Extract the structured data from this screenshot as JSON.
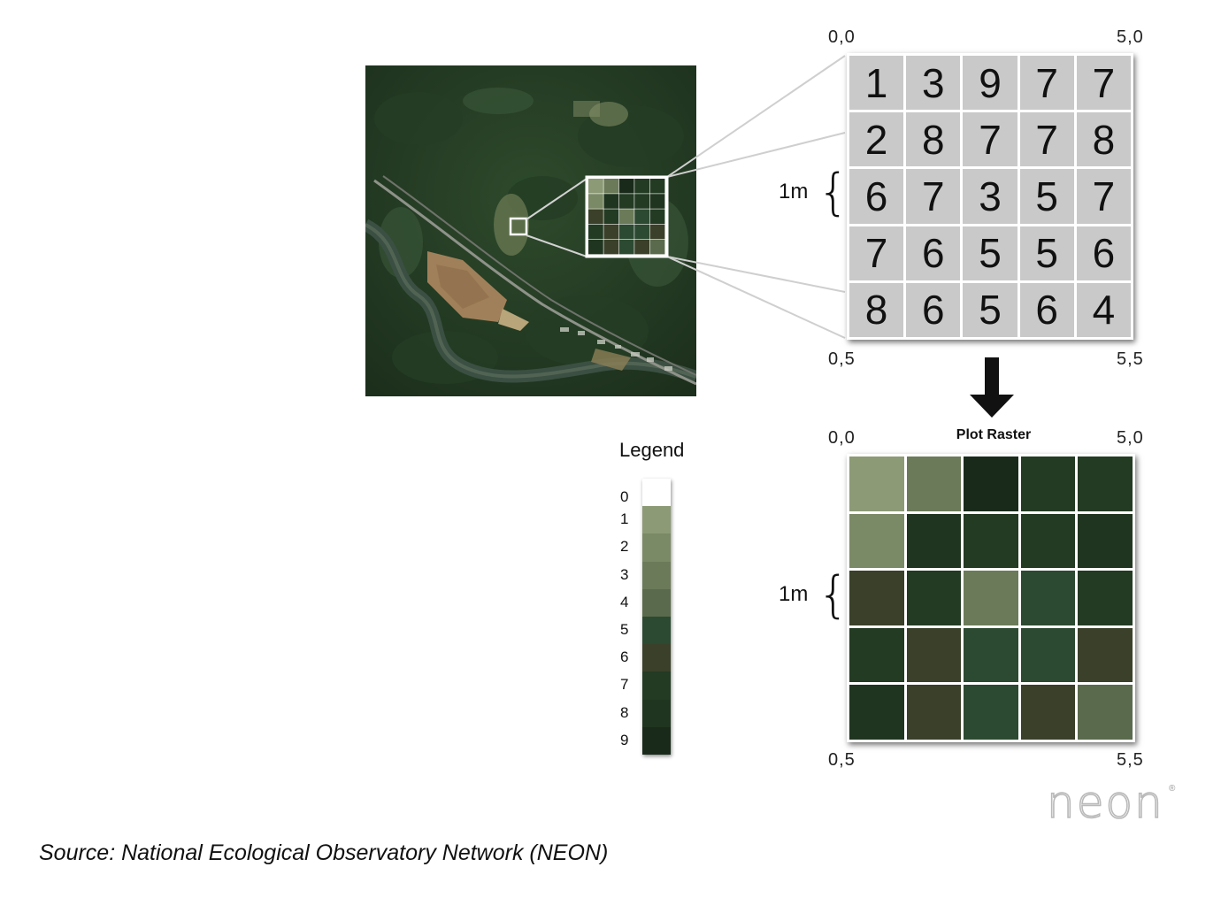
{
  "number_grid": {
    "corners": {
      "top_left": "0,0",
      "top_right": "5,0",
      "bottom_left": "0,5",
      "bottom_right": "5,5"
    },
    "scale_label": "1m",
    "values": [
      [
        1,
        3,
        9,
        7,
        7
      ],
      [
        2,
        8,
        7,
        7,
        8
      ],
      [
        6,
        7,
        3,
        5,
        7
      ],
      [
        7,
        6,
        5,
        5,
        6
      ],
      [
        8,
        6,
        5,
        6,
        4
      ]
    ]
  },
  "plot_raster": {
    "title": "Plot Raster",
    "corners": {
      "top_left": "0,0",
      "top_right": "5,0",
      "bottom_left": "0,5",
      "bottom_right": "5,5"
    },
    "scale_label": "1m"
  },
  "legend": {
    "title": "Legend",
    "items": [
      {
        "label": "0",
        "color": "#ffffff"
      },
      {
        "label": "1",
        "color": "#8c9a76"
      },
      {
        "label": "2",
        "color": "#7b8a66"
      },
      {
        "label": "3",
        "color": "#6b7a58"
      },
      {
        "label": "4",
        "color": "#5a6a4c"
      },
      {
        "label": "5",
        "color": "#2c4a31"
      },
      {
        "label": "6",
        "color": "#3a4029"
      },
      {
        "label": "7",
        "color": "#233a23"
      },
      {
        "label": "8",
        "color": "#20351f"
      },
      {
        "label": "9",
        "color": "#192a1a"
      }
    ]
  },
  "source_text": "Source: National Ecological Observatory Network (NEON)",
  "logo_text": "neon",
  "logo_mark": "®"
}
